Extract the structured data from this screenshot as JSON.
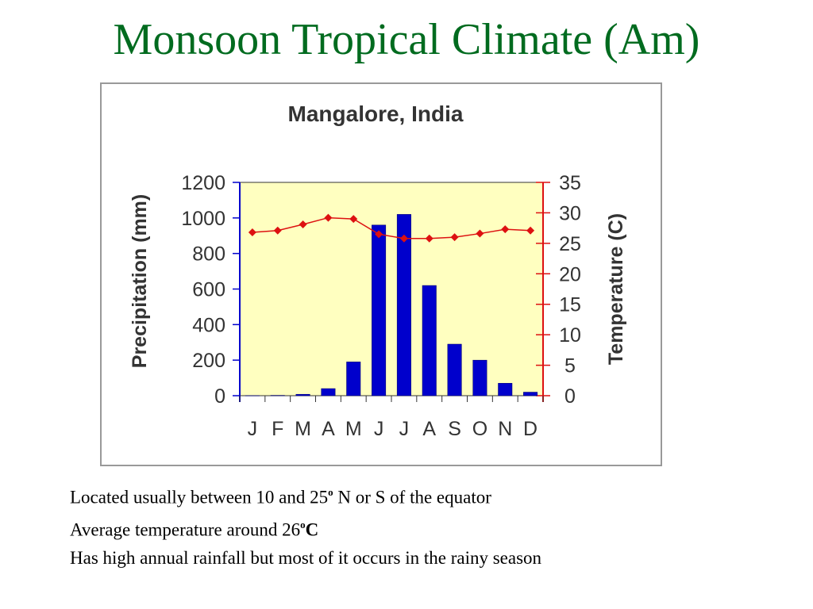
{
  "slide": {
    "title": "Monsoon Tropical Climate (Am)",
    "title_color": "#006b1f",
    "bullets": {
      "b1_text": "Located usually between 10 and 25",
      "b1_sup": "o",
      "b1_tail": " N or S of the equator",
      "b2_text": "Average temperature around 26",
      "b2_sup": "o",
      "b2_tail": "C",
      "b3_text": "Has high annual rainfall but most of it occurs in the rainy season"
    }
  },
  "chart_data": {
    "type": "bar",
    "title": "Mangalore, India",
    "categories": [
      "J",
      "F",
      "M",
      "A",
      "M",
      "J",
      "J",
      "A",
      "S",
      "O",
      "N",
      "D"
    ],
    "series": [
      {
        "name": "Precipitation",
        "type": "bar",
        "axis": "left",
        "color": "#0000cc",
        "values": [
          1,
          2,
          8,
          40,
          190,
          960,
          1020,
          620,
          290,
          200,
          70,
          20
        ]
      },
      {
        "name": "Temperature",
        "type": "line",
        "axis": "right",
        "color": "#dd1111",
        "values": [
          26.8,
          27.1,
          28.1,
          29.2,
          29.0,
          26.5,
          25.8,
          25.8,
          26.0,
          26.6,
          27.3,
          27.1
        ]
      }
    ],
    "ylabel": "Precipitation (mm)",
    "ylim": [
      0,
      1200
    ],
    "yticks": [
      "0",
      "200",
      "400",
      "600",
      "800",
      "1000",
      "1200"
    ],
    "y2label": "Temperature (C)",
    "y2lim": [
      0,
      35
    ],
    "y2ticks": [
      "0",
      "5",
      "10",
      "15",
      "20",
      "25",
      "30",
      "35"
    ],
    "plot_background": "#ffffc0",
    "grid": false,
    "legend": "none"
  }
}
